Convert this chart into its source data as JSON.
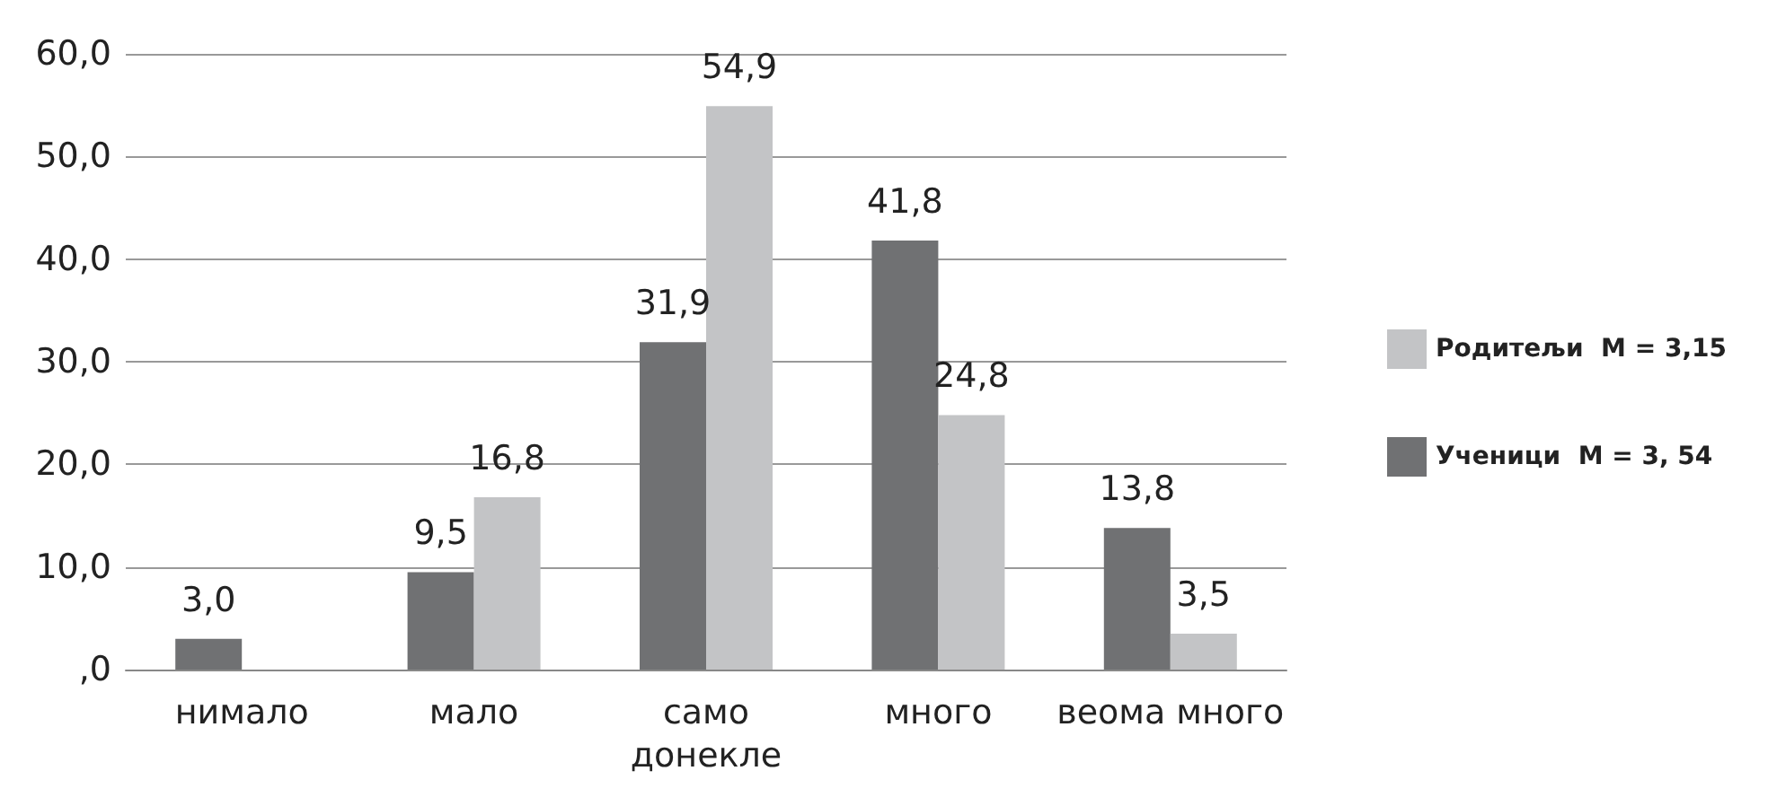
{
  "chart_data": {
    "type": "bar",
    "categories": [
      "нимало",
      "мало",
      "само\nдонекле",
      "много",
      "веома много"
    ],
    "series": [
      {
        "name": "Ученици  M = 3, 54",
        "color": "#707173",
        "values": [
          3.0,
          9.5,
          31.9,
          41.8,
          13.8
        ],
        "value_labels": [
          "3,0",
          "9,5",
          "31,9",
          "41,8",
          "13,8"
        ]
      },
      {
        "name": "Родитељи  M = 3,15",
        "color": "#c3c4c6",
        "values": [
          null,
          16.8,
          54.9,
          24.8,
          3.5
        ],
        "value_labels": [
          null,
          "16,8",
          "54,9",
          "24,8",
          "3,5"
        ]
      }
    ],
    "ylim": [
      0,
      60
    ],
    "yticks": [
      {
        "value": 0,
        "label": ",0"
      },
      {
        "value": 10,
        "label": "10,0"
      },
      {
        "value": 20,
        "label": "20,0"
      },
      {
        "value": 30,
        "label": "30,0"
      },
      {
        "value": 40,
        "label": "40,0"
      },
      {
        "value": 50,
        "label": "50,0"
      },
      {
        "value": 60,
        "label": "60,0"
      }
    ],
    "grid": "y",
    "legend": "right"
  }
}
